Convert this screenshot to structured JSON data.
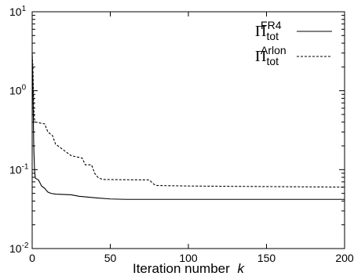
{
  "chart_data": {
    "type": "line",
    "title": "",
    "xlabel": "Iteration number",
    "xlabel_var": "k",
    "ylabel": "",
    "xlim": [
      0,
      200
    ],
    "ylim": [
      0.01,
      10
    ],
    "yscale": "log",
    "grid": false,
    "legend_position": "top-right",
    "x_ticks": [
      0,
      50,
      100,
      150,
      200
    ],
    "x_tick_labels": [
      "0",
      "50",
      "100",
      "150",
      "200"
    ],
    "y_ticks": [
      0.01,
      0.1,
      1,
      10
    ],
    "y_tick_labels": [
      {
        "base": "10",
        "exp": "-2"
      },
      {
        "base": "10",
        "exp": "-1"
      },
      {
        "base": "10",
        "exp": "0"
      },
      {
        "base": "10",
        "exp": "1"
      }
    ],
    "series": [
      {
        "name": "Π_tot^FR4",
        "legend_base": "Π",
        "legend_sub": "tot",
        "legend_sup": "FR4",
        "style": "solid",
        "color": "#000000",
        "points": [
          [
            0,
            3.0
          ],
          [
            0.5,
            1.0
          ],
          [
            1,
            0.2
          ],
          [
            1.5,
            0.1
          ],
          [
            2,
            0.078
          ],
          [
            4,
            0.074
          ],
          [
            5,
            0.068
          ],
          [
            6,
            0.062
          ],
          [
            8,
            0.058
          ],
          [
            10,
            0.052
          ],
          [
            12,
            0.05
          ],
          [
            15,
            0.049
          ],
          [
            25,
            0.048
          ],
          [
            30,
            0.046
          ],
          [
            40,
            0.044
          ],
          [
            50,
            0.0425
          ],
          [
            60,
            0.042
          ],
          [
            100,
            0.042
          ],
          [
            150,
            0.042
          ],
          [
            200,
            0.042
          ]
        ]
      },
      {
        "name": "Π_tot^Arlon",
        "legend_base": "Π",
        "legend_sub": "tot",
        "legend_sup": "Arlon",
        "style": "dashed",
        "color": "#000000",
        "points": [
          [
            0,
            2.8
          ],
          [
            0.5,
            2.0
          ],
          [
            1,
            0.6
          ],
          [
            1.5,
            0.43
          ],
          [
            2,
            0.4
          ],
          [
            8,
            0.38
          ],
          [
            10,
            0.3
          ],
          [
            13,
            0.27
          ],
          [
            15,
            0.21
          ],
          [
            18,
            0.19
          ],
          [
            25,
            0.15
          ],
          [
            32,
            0.14
          ],
          [
            34,
            0.115
          ],
          [
            38,
            0.115
          ],
          [
            40,
            0.09
          ],
          [
            42,
            0.08
          ],
          [
            45,
            0.075
          ],
          [
            75,
            0.074
          ],
          [
            78,
            0.065
          ],
          [
            80,
            0.063
          ],
          [
            100,
            0.062
          ],
          [
            150,
            0.061
          ],
          [
            200,
            0.06
          ]
        ]
      }
    ]
  }
}
